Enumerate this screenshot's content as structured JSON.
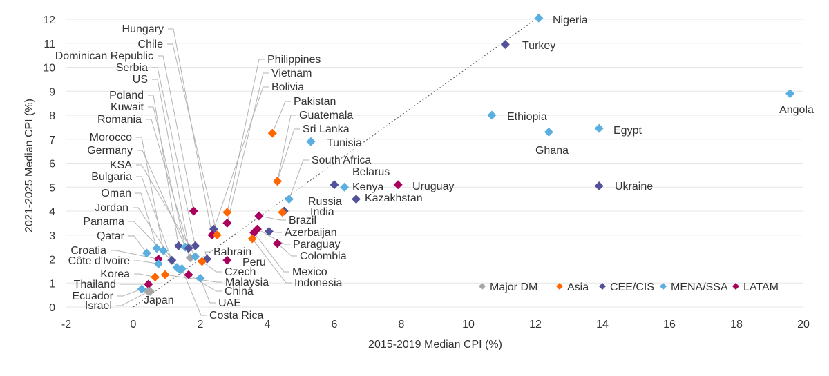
{
  "chart_data": {
    "type": "scatter",
    "xlabel": "2015-2019  Median CPI (%)",
    "ylabel": "2021-2025 Median CPI (%)",
    "xlim": [
      -2,
      20
    ],
    "ylim": [
      0,
      12
    ],
    "x_ticks": [
      "-2",
      "0",
      "2",
      "4",
      "6",
      "8",
      "10",
      "12",
      "14",
      "16",
      "18",
      "20"
    ],
    "y_ticks": [
      "0",
      "1",
      "2",
      "3",
      "4",
      "5",
      "6",
      "7",
      "8",
      "9",
      "10",
      "11",
      "12"
    ],
    "grid": "horizontal",
    "legend_position": "bottom-right",
    "reference_line": {
      "style": "dotted",
      "from": [
        0,
        0
      ],
      "to": [
        12.1,
        12.1
      ]
    },
    "groups": [
      {
        "name": "Major DM",
        "color": "#a6a6a6"
      },
      {
        "name": "Asia",
        "color": "#ff6600"
      },
      {
        "name": "CEE/CIS",
        "color": "#525199"
      },
      {
        "name": "MENA/SSA",
        "color": "#5aaee0"
      },
      {
        "name": "LATAM",
        "color": "#a8005c"
      }
    ],
    "points": [
      {
        "label": "Nigeria",
        "group": "MENA/SSA",
        "x": 12.1,
        "y": 12.05
      },
      {
        "label": "Turkey",
        "group": "CEE/CIS",
        "x": 11.1,
        "y": 10.95
      },
      {
        "label": "Angola",
        "group": "MENA/SSA",
        "x": 19.6,
        "y": 8.9
      },
      {
        "label": "Ethiopia",
        "group": "MENA/SSA",
        "x": 10.7,
        "y": 8.0
      },
      {
        "label": "Egypt",
        "group": "MENA/SSA",
        "x": 13.9,
        "y": 7.45
      },
      {
        "label": "Ghana",
        "group": "MENA/SSA",
        "x": 12.4,
        "y": 7.3
      },
      {
        "label": "Ukraine",
        "group": "CEE/CIS",
        "x": 13.9,
        "y": 5.05
      },
      {
        "label": "Uruguay",
        "group": "LATAM",
        "x": 7.9,
        "y": 5.1
      },
      {
        "label": "Belarus",
        "group": "CEE/CIS",
        "x": 6.0,
        "y": 5.1
      },
      {
        "label": "Kenya",
        "group": "MENA/SSA",
        "x": 6.3,
        "y": 5.0
      },
      {
        "label": "Kazakhstan",
        "group": "CEE/CIS",
        "x": 6.65,
        "y": 4.5
      },
      {
        "label": "Tunisia",
        "group": "MENA/SSA",
        "x": 5.3,
        "y": 6.9
      },
      {
        "label": "Pakistan",
        "group": "Asia",
        "x": 4.15,
        "y": 7.25
      },
      {
        "label": "Guatemala",
        "group": "Asia",
        "x": 4.3,
        "y": 5.25
      },
      {
        "label": "Sri Lanka",
        "group": "Asia",
        "x": 4.3,
        "y": 5.25
      },
      {
        "label": "South Africa",
        "group": "MENA/SSA",
        "x": 4.65,
        "y": 4.5
      },
      {
        "label": "Russia",
        "group": "CEE/CIS",
        "x": 4.5,
        "y": 4.0
      },
      {
        "label": "India",
        "group": "Asia",
        "x": 4.45,
        "y": 3.95
      },
      {
        "label": "Brazil",
        "group": "LATAM",
        "x": 3.75,
        "y": 3.8
      },
      {
        "label": "Azerbaijan",
        "group": "CEE/CIS",
        "x": 4.05,
        "y": 3.15
      },
      {
        "label": "Paraguay",
        "group": "LATAM",
        "x": 3.7,
        "y": 3.25
      },
      {
        "label": "Colombia",
        "group": "LATAM",
        "x": 4.3,
        "y": 2.65
      },
      {
        "label": "Mexico",
        "group": "LATAM",
        "x": 3.6,
        "y": 3.1
      },
      {
        "label": "Indonesia",
        "group": "Asia",
        "x": 3.55,
        "y": 2.85
      },
      {
        "label": "Philippines",
        "group": "Asia",
        "x": 2.8,
        "y": 3.95
      },
      {
        "label": "Vietnam",
        "group": "LATAM",
        "x": 2.8,
        "y": 3.5
      },
      {
        "label": "Bolivia",
        "group": "CEE/CIS",
        "x": 2.4,
        "y": 3.25
      },
      {
        "label": "Hungary",
        "group": "LATAM",
        "x": 2.35,
        "y": 3.0
      },
      {
        "label": "Chile",
        "group": "Asia",
        "x": 2.5,
        "y": 3.0
      },
      {
        "label": "Dominican Republic",
        "group": "LATAM",
        "x": 1.8,
        "y": 4.0
      },
      {
        "label": "Serbia",
        "group": "CEE/CIS",
        "x": 1.85,
        "y": 2.55
      },
      {
        "label": "US",
        "group": "Major DM",
        "x": 1.65,
        "y": 2.5
      },
      {
        "label": "Poland",
        "group": "CEE/CIS",
        "x": 1.35,
        "y": 2.55
      },
      {
        "label": "Kuwait",
        "group": "MENA/SSA",
        "x": 1.55,
        "y": 2.5
      },
      {
        "label": "Romania",
        "group": "CEE/CIS",
        "x": 1.65,
        "y": 2.45
      },
      {
        "label": "Morocco",
        "group": "MENA/SSA",
        "x": 0.9,
        "y": 2.35
      },
      {
        "label": "Germany",
        "group": "Major DM",
        "x": 1.7,
        "y": 2.05
      },
      {
        "label": "KSA",
        "group": "MENA/SSA",
        "x": 1.85,
        "y": 2.1
      },
      {
        "label": "Bulgaria",
        "group": "CEE/CIS",
        "x": 1.15,
        "y": 1.95
      },
      {
        "label": "Oman",
        "group": "MENA/SSA",
        "x": 0.7,
        "y": 2.45
      },
      {
        "label": "Jordan",
        "group": "MENA/SSA",
        "x": 1.3,
        "y": 1.65
      },
      {
        "label": "Panama",
        "group": "MENA/SSA",
        "x": 1.4,
        "y": 1.55
      },
      {
        "label": "Qatar",
        "group": "MENA/SSA",
        "x": 0.4,
        "y": 2.25
      },
      {
        "label": "Croatia",
        "group": "LATAM",
        "x": 0.75,
        "y": 2.0
      },
      {
        "label": "Côte d'Ivoire",
        "group": "MENA/SSA",
        "x": 0.75,
        "y": 1.8
      },
      {
        "label": "Korea",
        "group": "Asia",
        "x": 0.65,
        "y": 1.25
      },
      {
        "label": "Thailand",
        "group": "LATAM",
        "x": 0.45,
        "y": 0.95
      },
      {
        "label": "Ecuador",
        "group": "MENA/SSA",
        "x": 0.25,
        "y": 0.75
      },
      {
        "label": "Israel",
        "group": "Major DM",
        "x": 0.45,
        "y": 0.65
      },
      {
        "label": "Japan",
        "group": "Major DM",
        "x": 0.5,
        "y": 0.65
      },
      {
        "label": "Bahrain",
        "group": "CEE/CIS",
        "x": 2.2,
        "y": 2.0
      },
      {
        "label": "Peru",
        "group": "LATAM",
        "x": 2.8,
        "y": 1.95
      },
      {
        "label": "Czech",
        "group": "Asia",
        "x": 2.05,
        "y": 1.9
      },
      {
        "label": "Malaysia",
        "group": "Asia",
        "x": 0.95,
        "y": 1.35
      },
      {
        "label": "China",
        "group": "LATAM",
        "x": 1.65,
        "y": 1.35
      },
      {
        "label": "UAE",
        "group": "MENA/SSA",
        "x": 2.0,
        "y": 1.2
      },
      {
        "label": "Costa Rica",
        "group": "MENA/SSA",
        "x": 1.45,
        "y": 1.6
      }
    ]
  }
}
